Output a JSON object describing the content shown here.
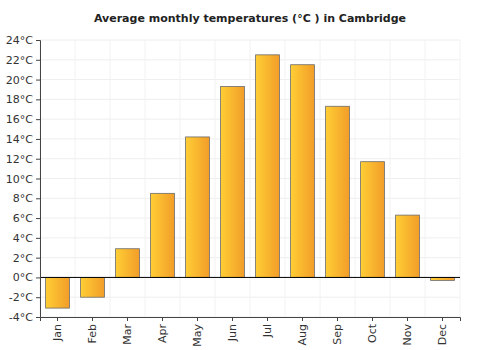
{
  "chart_data": {
    "type": "bar",
    "title": "Average monthly temperatures (°C ) in Cambridge",
    "categories": [
      "Jan",
      "Feb",
      "Mar",
      "Apr",
      "May",
      "Jun",
      "Jul",
      "Aug",
      "Sep",
      "Oct",
      "Nov",
      "Dec"
    ],
    "values": [
      -3.1,
      -2.0,
      2.9,
      8.5,
      14.2,
      19.3,
      22.5,
      21.5,
      17.3,
      11.7,
      6.3,
      -0.3
    ],
    "color": "#ffa62b",
    "ylim": [
      -4,
      24
    ],
    "yticks": [
      {
        "value": -4,
        "label": "-4°C"
      },
      {
        "value": -2,
        "label": "-2°C"
      },
      {
        "value": 0,
        "label": "0°C"
      },
      {
        "value": 2,
        "label": "2°C"
      },
      {
        "value": 4,
        "label": "4°C"
      },
      {
        "value": 6,
        "label": "6°C"
      },
      {
        "value": 8,
        "label": "8°C"
      },
      {
        "value": 10,
        "label": "10°C"
      },
      {
        "value": 12,
        "label": "12°C"
      },
      {
        "value": 14,
        "label": "14°C"
      },
      {
        "value": 16,
        "label": "16°C"
      },
      {
        "value": 18,
        "label": "18°C"
      },
      {
        "value": 20,
        "label": "20°C"
      },
      {
        "value": 22,
        "label": "22°C"
      },
      {
        "value": 24,
        "label": "24°C"
      }
    ],
    "grid": true
  }
}
